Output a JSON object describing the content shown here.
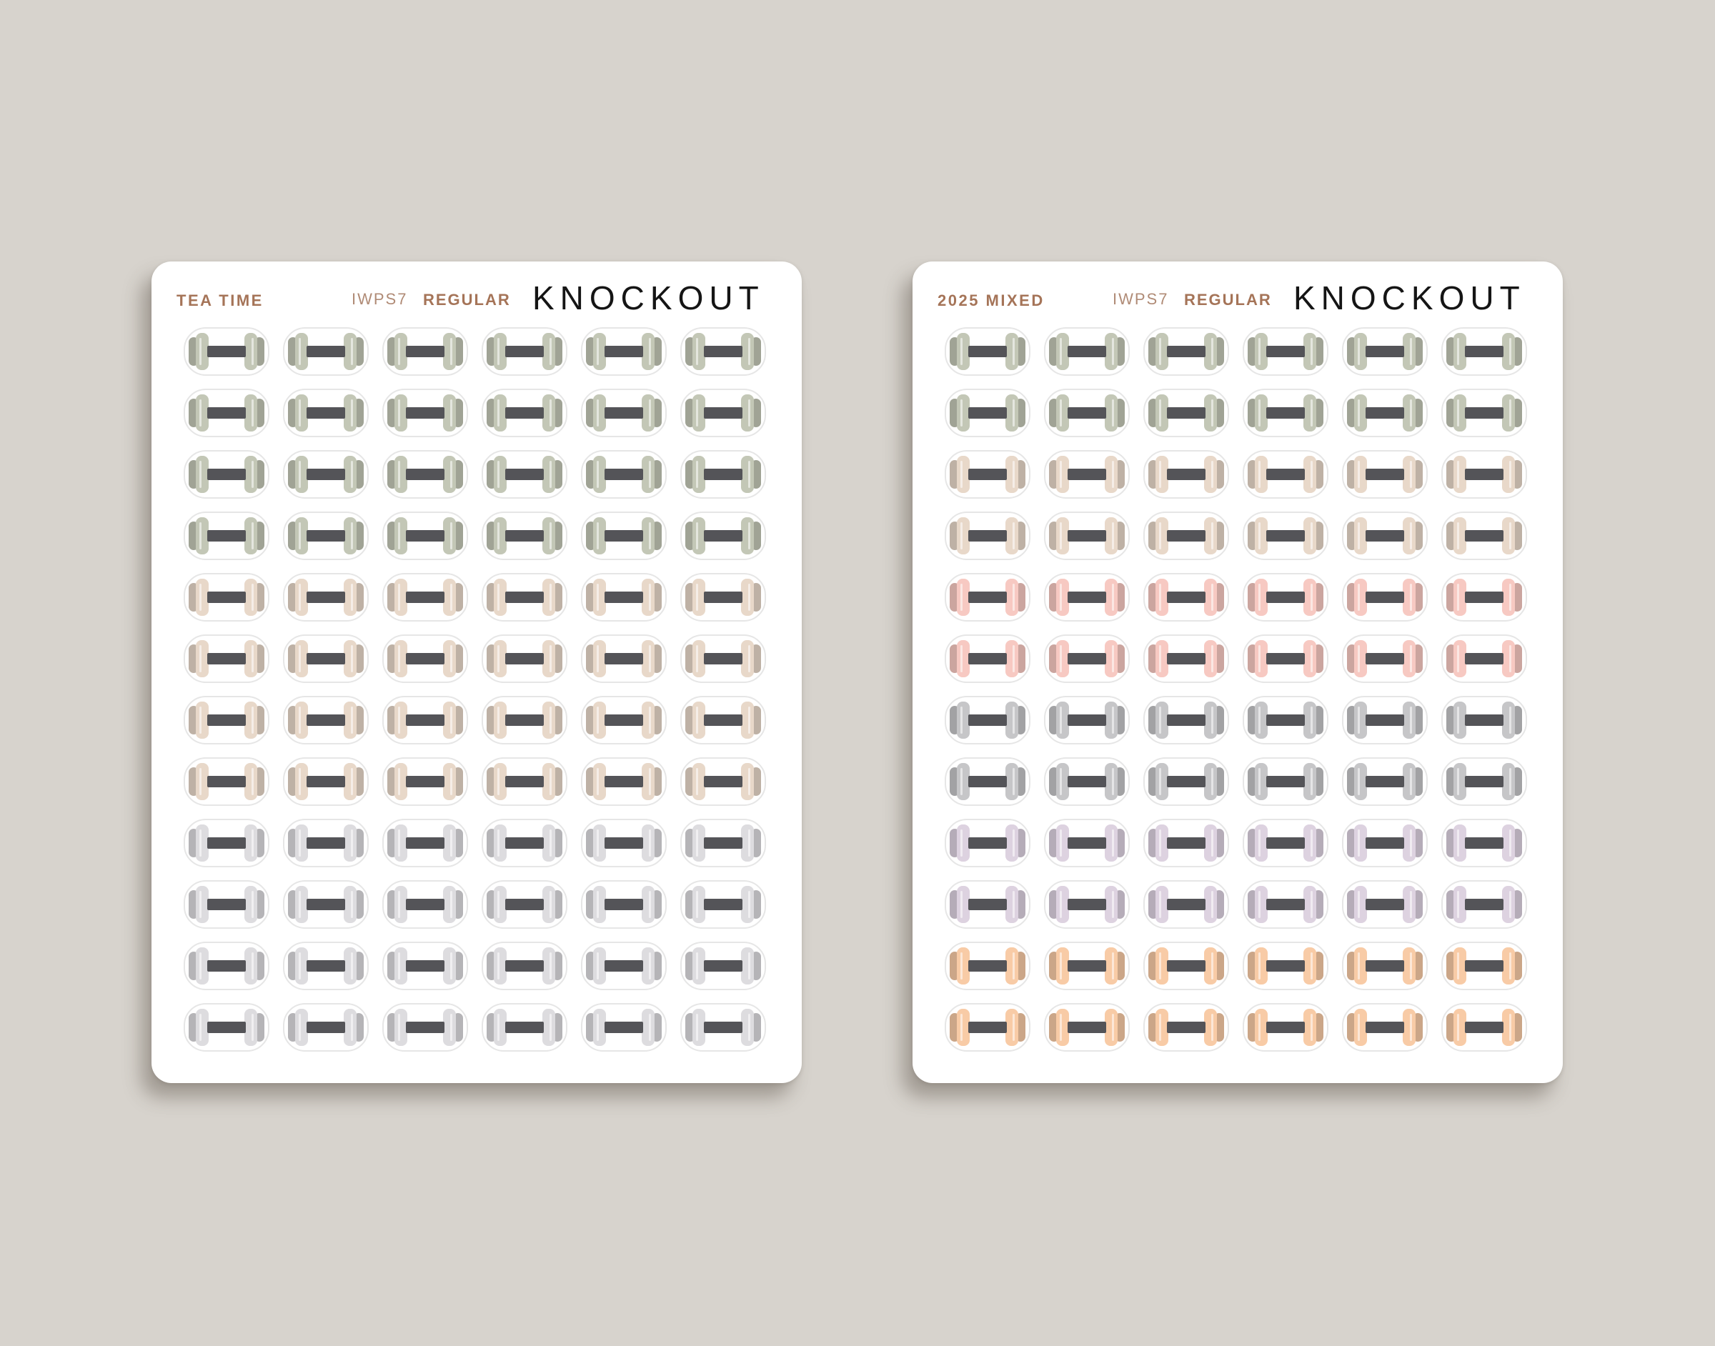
{
  "sheets": [
    {
      "palette_name": "TEA TIME",
      "sku": "IWPS7",
      "size": "REGULAR",
      "style": "KNOCKOUT",
      "columns": 6,
      "row_colors": [
        "#c3c7b6",
        "#c3c7b6",
        "#c3c7b6",
        "#c3c7b6",
        "#e8d8c9",
        "#e8d8c9",
        "#e8d8c9",
        "#e8d8c9",
        "#dddcdf",
        "#dddcdf",
        "#dddcdf",
        "#dddcdf"
      ]
    },
    {
      "palette_name": "2025 MIXED",
      "sku": "IWPS7",
      "size": "REGULAR",
      "style": "KNOCKOUT",
      "columns": 6,
      "row_colors": [
        "#c3c7b6",
        "#c3c7b6",
        "#e8d8c9",
        "#e8d8c9",
        "#f7c9c2",
        "#f7c9c2",
        "#c6c6c8",
        "#c6c6c8",
        "#ddd2e0",
        "#ddd2e0",
        "#f8cba6",
        "#f8cba6"
      ]
    }
  ],
  "icon": "dumbbell-icon",
  "colors": {
    "background": "#d7d3cd",
    "sheet": "#ffffff",
    "bar": "#545458",
    "label_accent": "#a57458",
    "title": "#151515"
  }
}
